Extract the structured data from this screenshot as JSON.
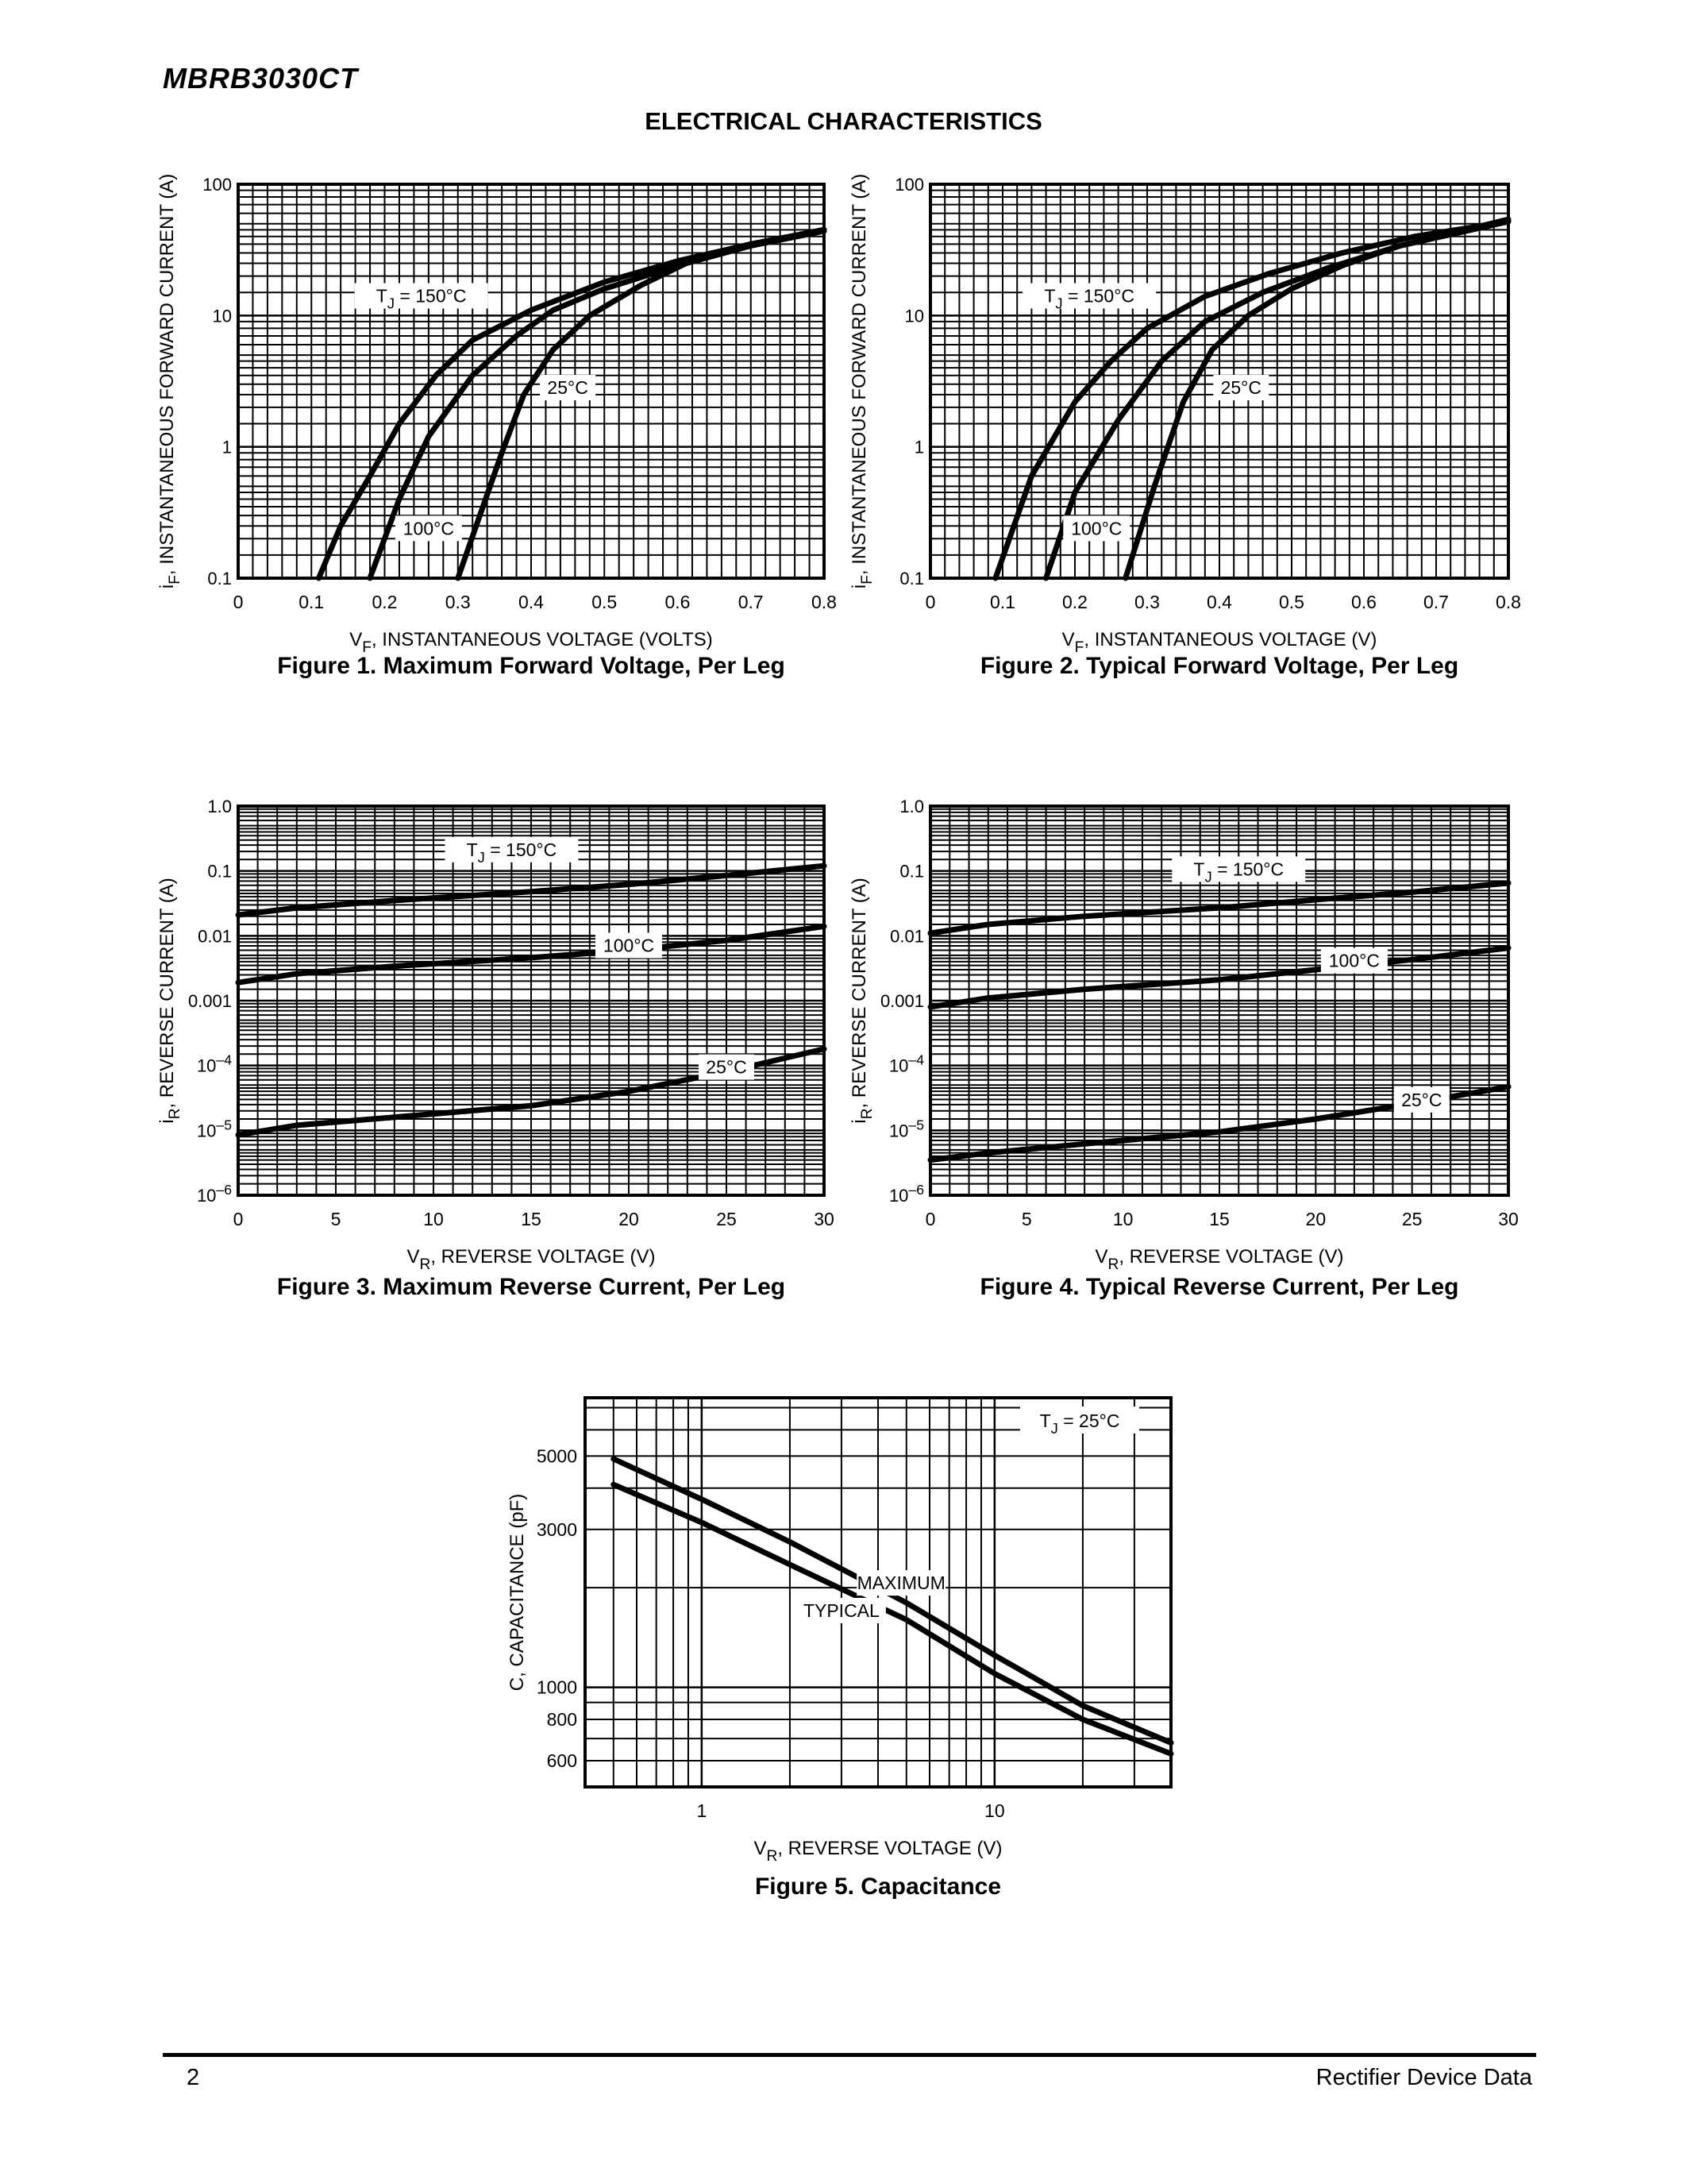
{
  "header": {
    "part_number": "MBRB3030CT",
    "section_title": "ELECTRICAL CHARACTERISTICS"
  },
  "footer": {
    "page_number": "2",
    "right_text": "Rectifier Device Data"
  },
  "chart_data": [
    {
      "id": "fig1",
      "type": "line",
      "caption": "Figure 1. Maximum Forward Voltage, Per Leg",
      "xlabel": "V_F, INSTANTANEOUS VOLTAGE (VOLTS)",
      "ylabel": "i_F, INSTANTANEOUS FORWARD CURRENT (A)",
      "xscale": "linear",
      "yscale": "log",
      "xlim": [
        0,
        0.8
      ],
      "ylim": [
        0.1,
        100
      ],
      "xticks": [
        "0",
        "0.1",
        "0.2",
        "0.3",
        "0.4",
        "0.5",
        "0.6",
        "0.7",
        "0.8"
      ],
      "yticks": [
        "0.1",
        "1",
        "10",
        "100"
      ],
      "grid": true,
      "series": [
        {
          "name": "T_J = 150°C",
          "x": [
            0.11,
            0.14,
            0.18,
            0.22,
            0.27,
            0.32,
            0.4,
            0.5,
            0.6,
            0.7,
            0.8
          ],
          "y": [
            0.1,
            0.25,
            0.6,
            1.5,
            3.5,
            6.5,
            11,
            18,
            26,
            35,
            45
          ]
        },
        {
          "name": "100°C",
          "x": [
            0.18,
            0.22,
            0.26,
            0.32,
            0.38,
            0.43,
            0.5,
            0.6,
            0.7,
            0.8
          ],
          "y": [
            0.1,
            0.4,
            1.2,
            3.5,
            7,
            11,
            16,
            24,
            34,
            44
          ]
        },
        {
          "name": "25°C",
          "x": [
            0.3,
            0.33,
            0.36,
            0.39,
            0.43,
            0.48,
            0.55,
            0.63,
            0.7,
            0.8
          ],
          "y": [
            0.1,
            0.3,
            0.9,
            2.5,
            5.5,
            10,
            17,
            28,
            35,
            45
          ]
        }
      ]
    },
    {
      "id": "fig2",
      "type": "line",
      "caption": "Figure 2. Typical Forward Voltage, Per Leg",
      "xlabel": "V_F, INSTANTANEOUS VOLTAGE (V)",
      "ylabel": "i_F, INSTANTANEOUS FORWARD CURRENT (A)",
      "xscale": "linear",
      "yscale": "log",
      "xlim": [
        0,
        0.8
      ],
      "ylim": [
        0.1,
        100
      ],
      "xticks": [
        "0",
        "0.1",
        "0.2",
        "0.3",
        "0.4",
        "0.5",
        "0.6",
        "0.7",
        "0.8"
      ],
      "yticks": [
        "0.1",
        "1",
        "10",
        "100"
      ],
      "grid": true,
      "series": [
        {
          "name": "T_J = 150°C",
          "x": [
            0.09,
            0.14,
            0.2,
            0.25,
            0.3,
            0.38,
            0.47,
            0.57,
            0.67,
            0.8
          ],
          "y": [
            0.1,
            0.6,
            2.2,
            4.5,
            8,
            14,
            21,
            30,
            40,
            52
          ]
        },
        {
          "name": "100°C",
          "x": [
            0.16,
            0.2,
            0.26,
            0.32,
            0.38,
            0.46,
            0.55,
            0.65,
            0.8
          ],
          "y": [
            0.1,
            0.45,
            1.6,
            4.5,
            9,
            15,
            23,
            34,
            52
          ]
        },
        {
          "name": "25°C",
          "x": [
            0.27,
            0.31,
            0.35,
            0.39,
            0.44,
            0.5,
            0.57,
            0.65,
            0.8
          ],
          "y": [
            0.1,
            0.5,
            2.2,
            5.5,
            10,
            16,
            24,
            34,
            54
          ]
        }
      ]
    },
    {
      "id": "fig3",
      "type": "line",
      "caption": "Figure 3. Maximum Reverse Current, Per Leg",
      "xlabel": "V_R, REVERSE VOLTAGE (V)",
      "ylabel": "i_R, REVERSE CURRENT (A)",
      "xscale": "linear",
      "yscale": "log",
      "xlim": [
        0,
        30
      ],
      "ylim": [
        1e-06,
        1.0
      ],
      "xticks": [
        "0",
        "5",
        "10",
        "15",
        "20",
        "25",
        "30"
      ],
      "yticks": [
        "10–6",
        "10–5",
        "10–4",
        "0.001",
        "0.01",
        "0.1",
        "1.0"
      ],
      "grid": true,
      "series": [
        {
          "name": "T_J = 150°C",
          "x": [
            0,
            3,
            8,
            15,
            20,
            25,
            30
          ],
          "y": [
            0.021,
            0.027,
            0.035,
            0.048,
            0.062,
            0.085,
            0.12
          ]
        },
        {
          "name": "100°C",
          "x": [
            0,
            3,
            8,
            15,
            20,
            25,
            30
          ],
          "y": [
            0.0019,
            0.0026,
            0.0034,
            0.0046,
            0.006,
            0.0085,
            0.014
          ]
        },
        {
          "name": "25°C",
          "x": [
            0,
            3,
            8,
            15,
            20,
            25,
            30
          ],
          "y": [
            8.5e-06,
            1.2e-05,
            1.6e-05,
            2.4e-05,
            4e-05,
            8e-05,
            0.00018
          ]
        }
      ]
    },
    {
      "id": "fig4",
      "type": "line",
      "caption": "Figure 4. Typical Reverse Current, Per Leg",
      "xlabel": "V_R, REVERSE VOLTAGE (V)",
      "ylabel": "i_R, REVERSE CURRENT (A)",
      "xscale": "linear",
      "yscale": "log",
      "xlim": [
        0,
        30
      ],
      "ylim": [
        1e-06,
        1.0
      ],
      "xticks": [
        "0",
        "5",
        "10",
        "15",
        "20",
        "25",
        "30"
      ],
      "yticks": [
        "10–6",
        "10–5",
        "10–4",
        "0.001",
        "0.01",
        "0.1",
        "1.0"
      ],
      "grid": true,
      "series": [
        {
          "name": "T_J = 150°C",
          "x": [
            0,
            3,
            8,
            15,
            20,
            25,
            30
          ],
          "y": [
            0.011,
            0.015,
            0.02,
            0.027,
            0.036,
            0.047,
            0.065
          ]
        },
        {
          "name": "100°C",
          "x": [
            0,
            3,
            8,
            15,
            20,
            25,
            30
          ],
          "y": [
            0.0008,
            0.0011,
            0.0015,
            0.0021,
            0.003,
            0.0043,
            0.0065
          ]
        },
        {
          "name": "25°C",
          "x": [
            0,
            3,
            8,
            15,
            20,
            25,
            30
          ],
          "y": [
            3.5e-06,
            4.5e-06,
            6.2e-06,
            9.5e-06,
            1.5e-05,
            2.6e-05,
            4.7e-05
          ]
        }
      ]
    },
    {
      "id": "fig5",
      "type": "line",
      "caption": "Figure 5. Capacitance",
      "xlabel": "V_R, REVERSE VOLTAGE (V)",
      "ylabel": "C, CAPACITANCE (pF)",
      "xscale": "log",
      "yscale": "log",
      "xlim": [
        0.4,
        40
      ],
      "ylim": [
        500,
        7500
      ],
      "xticks": [
        {
          "value": 1,
          "label": "1"
        },
        {
          "value": 10,
          "label": "10"
        }
      ],
      "yticks": [
        {
          "value": 600,
          "label": "600"
        },
        {
          "value": 800,
          "label": "800"
        },
        {
          "value": 1000,
          "label": "1000"
        },
        {
          "value": 3000,
          "label": "3000"
        },
        {
          "value": 5000,
          "label": "5000"
        }
      ],
      "annotation": "T_J = 25°C",
      "grid": true,
      "series": [
        {
          "name": "MAXIMUM",
          "x": [
            0.5,
            1,
            2,
            5,
            10,
            20,
            40
          ],
          "y": [
            4900,
            3700,
            2750,
            1800,
            1250,
            880,
            680
          ]
        },
        {
          "name": "TYPICAL",
          "x": [
            0.5,
            1,
            2,
            5,
            10,
            20,
            40
          ],
          "y": [
            4100,
            3150,
            2350,
            1600,
            1100,
            800,
            630
          ]
        }
      ]
    }
  ]
}
